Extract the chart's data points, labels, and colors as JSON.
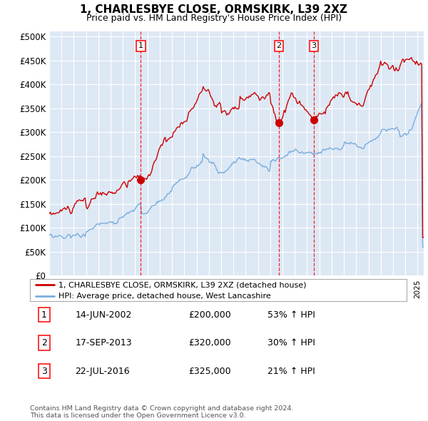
{
  "title": "1, CHARLESBYE CLOSE, ORMSKIRK, L39 2XZ",
  "subtitle": "Price paid vs. HM Land Registry's House Price Index (HPI)",
  "ylim": [
    0,
    510000
  ],
  "yticks": [
    0,
    50000,
    100000,
    150000,
    200000,
    250000,
    300000,
    350000,
    400000,
    450000,
    500000
  ],
  "ytick_labels": [
    "£0",
    "£50K",
    "£100K",
    "£150K",
    "£200K",
    "£250K",
    "£300K",
    "£350K",
    "£400K",
    "£450K",
    "£500K"
  ],
  "legend_line1": "1, CHARLESBYE CLOSE, ORMSKIRK, L39 2XZ (detached house)",
  "legend_line2": "HPI: Average price, detached house, West Lancashire",
  "sale1_date": "14-JUN-2002",
  "sale1_price": 200000,
  "sale1_hpi": "53% ↑ HPI",
  "sale2_date": "17-SEP-2013",
  "sale2_price": 320000,
  "sale2_hpi": "30% ↑ HPI",
  "sale3_date": "22-JUL-2016",
  "sale3_price": 325000,
  "sale3_hpi": "21% ↑ HPI",
  "line_color_red": "#cc0000",
  "line_color_blue": "#7aaddc",
  "bg_color": "#dde8f5",
  "grid_color": "#ffffff",
  "footnote": "Contains HM Land Registry data © Crown copyright and database right 2024.\nThis data is licensed under the Open Government Licence v3.0.",
  "xstart_year": 1995,
  "xend_year": 2025
}
